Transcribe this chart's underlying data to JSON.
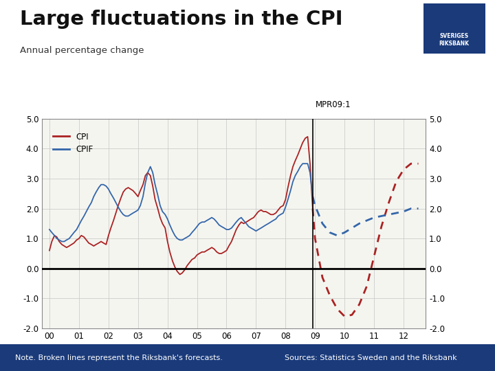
{
  "title": "Large fluctuations in the CPI",
  "subtitle": "Annual percentage change",
  "mpr_label": "MPR09:1",
  "cpi_label": "CPI",
  "cpif_label": "CPIF",
  "note": "Note. Broken lines represent the Riksbank's forecasts.",
  "sources": "Sources: Statistics Sweden and the Riksbank",
  "cpi_color": "#aa2222",
  "cpif_color": "#3366aa",
  "background_color": "#ffffff",
  "chart_bg": "#f5f5f0",
  "footer_color": "#1a3a7a",
  "logo_bg": "#1a3a7a",
  "ylim": [
    -2.0,
    5.0
  ],
  "yticks": [
    -2.0,
    -1.0,
    0.0,
    1.0,
    2.0,
    3.0,
    4.0,
    5.0
  ],
  "xlim_start": 1999.75,
  "xlim_end": 2012.75,
  "forecast_start": 2008.92,
  "xtick_years": [
    2000,
    2001,
    2002,
    2003,
    2004,
    2005,
    2006,
    2007,
    2008,
    2009,
    2010,
    2011,
    2012
  ],
  "xtick_labels": [
    "00",
    "01",
    "02",
    "03",
    "04",
    "05",
    "06",
    "07",
    "08",
    "09",
    "10",
    "11",
    "12"
  ],
  "cpi_x": [
    2000.0,
    2000.08,
    2000.17,
    2000.25,
    2000.33,
    2000.42,
    2000.5,
    2000.58,
    2000.67,
    2000.75,
    2000.83,
    2000.92,
    2001.0,
    2001.08,
    2001.17,
    2001.25,
    2001.33,
    2001.42,
    2001.5,
    2001.58,
    2001.67,
    2001.75,
    2001.83,
    2001.92,
    2002.0,
    2002.08,
    2002.17,
    2002.25,
    2002.33,
    2002.42,
    2002.5,
    2002.58,
    2002.67,
    2002.75,
    2002.83,
    2002.92,
    2003.0,
    2003.08,
    2003.17,
    2003.25,
    2003.33,
    2003.42,
    2003.5,
    2003.58,
    2003.67,
    2003.75,
    2003.83,
    2003.92,
    2004.0,
    2004.08,
    2004.17,
    2004.25,
    2004.33,
    2004.42,
    2004.5,
    2004.58,
    2004.67,
    2004.75,
    2004.83,
    2004.92,
    2005.0,
    2005.08,
    2005.17,
    2005.25,
    2005.33,
    2005.42,
    2005.5,
    2005.58,
    2005.67,
    2005.75,
    2005.83,
    2005.92,
    2006.0,
    2006.08,
    2006.17,
    2006.25,
    2006.33,
    2006.42,
    2006.5,
    2006.58,
    2006.67,
    2006.75,
    2006.83,
    2006.92,
    2007.0,
    2007.08,
    2007.17,
    2007.25,
    2007.33,
    2007.42,
    2007.5,
    2007.58,
    2007.67,
    2007.75,
    2007.83,
    2007.92,
    2008.0,
    2008.08,
    2008.17,
    2008.25,
    2008.33,
    2008.42,
    2008.5,
    2008.58,
    2008.67,
    2008.75,
    2008.83,
    2008.92
  ],
  "cpi_y": [
    0.6,
    0.9,
    1.1,
    1.05,
    0.9,
    0.8,
    0.75,
    0.7,
    0.75,
    0.8,
    0.85,
    0.95,
    1.0,
    1.1,
    1.05,
    0.95,
    0.85,
    0.8,
    0.75,
    0.8,
    0.85,
    0.9,
    0.85,
    0.8,
    1.1,
    1.35,
    1.6,
    1.85,
    2.1,
    2.35,
    2.55,
    2.65,
    2.7,
    2.65,
    2.6,
    2.5,
    2.4,
    2.6,
    2.8,
    3.1,
    3.2,
    3.1,
    2.75,
    2.3,
    2.0,
    1.7,
    1.5,
    1.35,
    0.9,
    0.55,
    0.25,
    0.05,
    -0.1,
    -0.2,
    -0.15,
    -0.05,
    0.1,
    0.2,
    0.3,
    0.35,
    0.45,
    0.5,
    0.55,
    0.55,
    0.6,
    0.65,
    0.7,
    0.65,
    0.55,
    0.5,
    0.5,
    0.55,
    0.6,
    0.75,
    0.9,
    1.1,
    1.3,
    1.45,
    1.55,
    1.5,
    1.55,
    1.6,
    1.65,
    1.7,
    1.8,
    1.9,
    1.95,
    1.9,
    1.9,
    1.85,
    1.8,
    1.8,
    1.85,
    1.95,
    2.05,
    2.1,
    2.3,
    2.7,
    3.1,
    3.4,
    3.6,
    3.8,
    4.0,
    4.2,
    4.35,
    4.4,
    3.5,
    2.0
  ],
  "cpif_x": [
    2000.0,
    2000.08,
    2000.17,
    2000.25,
    2000.33,
    2000.42,
    2000.5,
    2000.58,
    2000.67,
    2000.75,
    2000.83,
    2000.92,
    2001.0,
    2001.08,
    2001.17,
    2001.25,
    2001.33,
    2001.42,
    2001.5,
    2001.58,
    2001.67,
    2001.75,
    2001.83,
    2001.92,
    2002.0,
    2002.08,
    2002.17,
    2002.25,
    2002.33,
    2002.42,
    2002.5,
    2002.58,
    2002.67,
    2002.75,
    2002.83,
    2002.92,
    2003.0,
    2003.08,
    2003.17,
    2003.25,
    2003.33,
    2003.42,
    2003.5,
    2003.58,
    2003.67,
    2003.75,
    2003.83,
    2003.92,
    2004.0,
    2004.08,
    2004.17,
    2004.25,
    2004.33,
    2004.42,
    2004.5,
    2004.58,
    2004.67,
    2004.75,
    2004.83,
    2004.92,
    2005.0,
    2005.08,
    2005.17,
    2005.25,
    2005.33,
    2005.42,
    2005.5,
    2005.58,
    2005.67,
    2005.75,
    2005.83,
    2005.92,
    2006.0,
    2006.08,
    2006.17,
    2006.25,
    2006.33,
    2006.42,
    2006.5,
    2006.58,
    2006.67,
    2006.75,
    2006.83,
    2006.92,
    2007.0,
    2007.08,
    2007.17,
    2007.25,
    2007.33,
    2007.42,
    2007.5,
    2007.58,
    2007.67,
    2007.75,
    2007.83,
    2007.92,
    2008.0,
    2008.08,
    2008.17,
    2008.25,
    2008.33,
    2008.42,
    2008.5,
    2008.58,
    2008.67,
    2008.75,
    2008.83,
    2008.92
  ],
  "cpif_y": [
    1.3,
    1.2,
    1.1,
    1.0,
    0.95,
    0.9,
    0.9,
    0.95,
    1.0,
    1.1,
    1.2,
    1.3,
    1.45,
    1.6,
    1.75,
    1.9,
    2.05,
    2.2,
    2.4,
    2.55,
    2.7,
    2.8,
    2.8,
    2.75,
    2.65,
    2.5,
    2.35,
    2.2,
    2.05,
    1.9,
    1.8,
    1.75,
    1.75,
    1.8,
    1.85,
    1.9,
    1.95,
    2.1,
    2.4,
    2.85,
    3.2,
    3.4,
    3.2,
    2.8,
    2.45,
    2.1,
    1.9,
    1.8,
    1.65,
    1.45,
    1.25,
    1.1,
    1.0,
    0.95,
    0.95,
    1.0,
    1.05,
    1.1,
    1.2,
    1.3,
    1.4,
    1.5,
    1.55,
    1.55,
    1.6,
    1.65,
    1.7,
    1.65,
    1.55,
    1.45,
    1.4,
    1.35,
    1.3,
    1.3,
    1.35,
    1.45,
    1.55,
    1.65,
    1.7,
    1.6,
    1.5,
    1.4,
    1.35,
    1.3,
    1.25,
    1.3,
    1.35,
    1.4,
    1.45,
    1.5,
    1.55,
    1.6,
    1.65,
    1.75,
    1.8,
    1.85,
    2.05,
    2.3,
    2.6,
    2.9,
    3.1,
    3.25,
    3.4,
    3.5,
    3.5,
    3.5,
    3.2,
    2.4
  ],
  "cpi_forecast_x": [
    2008.92,
    2009.0,
    2009.25,
    2009.5,
    2009.75,
    2010.0,
    2010.25,
    2010.5,
    2010.75,
    2011.0,
    2011.25,
    2011.5,
    2011.75,
    2012.0,
    2012.25,
    2012.5
  ],
  "cpi_forecast_y": [
    2.0,
    1.0,
    -0.3,
    -0.9,
    -1.35,
    -1.6,
    -1.55,
    -1.2,
    -0.6,
    0.4,
    1.4,
    2.2,
    2.9,
    3.3,
    3.5,
    3.5
  ],
  "cpif_forecast_x": [
    2008.92,
    2009.0,
    2009.25,
    2009.5,
    2009.75,
    2010.0,
    2010.25,
    2010.5,
    2010.75,
    2011.0,
    2011.25,
    2011.5,
    2011.75,
    2012.0,
    2012.25,
    2012.5
  ],
  "cpif_forecast_y": [
    2.4,
    2.1,
    1.5,
    1.2,
    1.1,
    1.2,
    1.35,
    1.5,
    1.6,
    1.7,
    1.75,
    1.8,
    1.85,
    1.9,
    2.0,
    2.0
  ]
}
